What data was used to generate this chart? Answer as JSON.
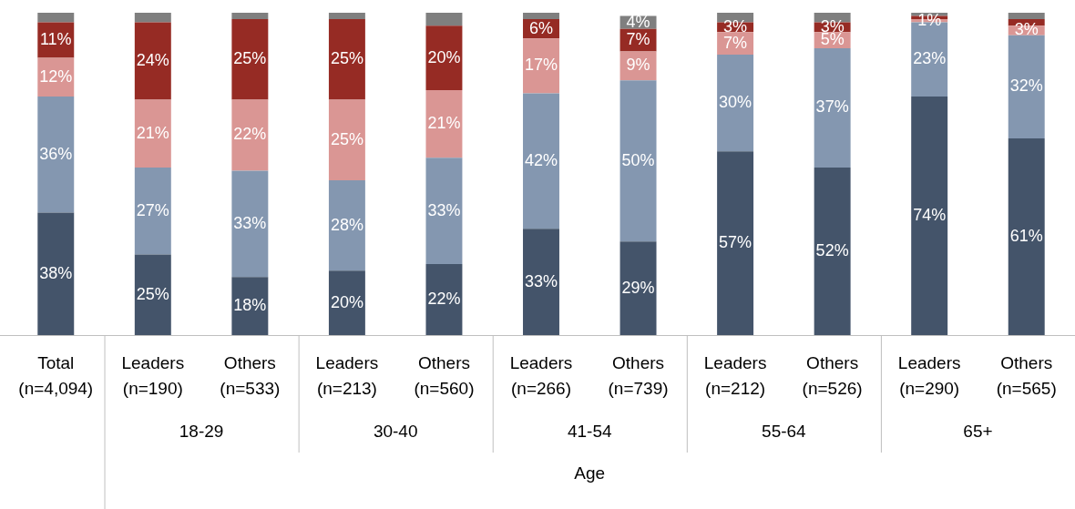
{
  "chart_data": {
    "type": "bar",
    "stacked": true,
    "ylim": [
      0,
      100
    ],
    "categories": [
      "Total (n=4,094)",
      "Leaders (n=190)",
      "Others (n=533)",
      "Leaders (n=213)",
      "Others (n=560)",
      "Leaders (n=266)",
      "Others (n=739)",
      "Leaders (n=212)",
      "Others (n=526)",
      "Leaders (n=290)",
      "Others (n=565)"
    ],
    "series": [
      {
        "color": "#44546a",
        "values": [
          38,
          25,
          18,
          20,
          22,
          33,
          29,
          57,
          52,
          74,
          61
        ],
        "value_labels": [
          "38%",
          "25%",
          "18%",
          "20%",
          "22%",
          "33%",
          "29%",
          "57%",
          "52%",
          "74%",
          "61%"
        ]
      },
      {
        "color": "#8497b0",
        "values": [
          36,
          27,
          33,
          28,
          33,
          42,
          50,
          30,
          37,
          23,
          32
        ],
        "value_labels": [
          "36%",
          "27%",
          "33%",
          "28%",
          "33%",
          "42%",
          "50%",
          "30%",
          "37%",
          "23%",
          "32%"
        ]
      },
      {
        "color": "#da9694",
        "values": [
          12,
          21,
          22,
          25,
          21,
          17,
          9,
          7,
          5,
          1,
          3
        ],
        "value_labels": [
          "12%",
          "21%",
          "22%",
          "25%",
          "21%",
          "17%",
          "9%",
          "7%",
          "5%",
          "1%",
          "3%"
        ]
      },
      {
        "color": "#962b24",
        "values": [
          11,
          24,
          25,
          25,
          20,
          6,
          7,
          3,
          3,
          1,
          2
        ],
        "value_labels": [
          "11%",
          "24%",
          "25%",
          "25%",
          "20%",
          "6%",
          "7%",
          "3%",
          "3%",
          null,
          null
        ]
      },
      {
        "color": "#7f7f7f",
        "values": [
          3,
          3,
          2,
          2,
          4,
          2,
          4,
          3,
          3,
          1,
          2
        ],
        "value_labels": [
          null,
          null,
          null,
          null,
          null,
          null,
          "4%",
          null,
          null,
          null,
          null
        ]
      }
    ],
    "annotations": [
      "18-29",
      "30-40",
      "41-54",
      "55-64",
      "65+",
      "Age"
    ]
  }
}
